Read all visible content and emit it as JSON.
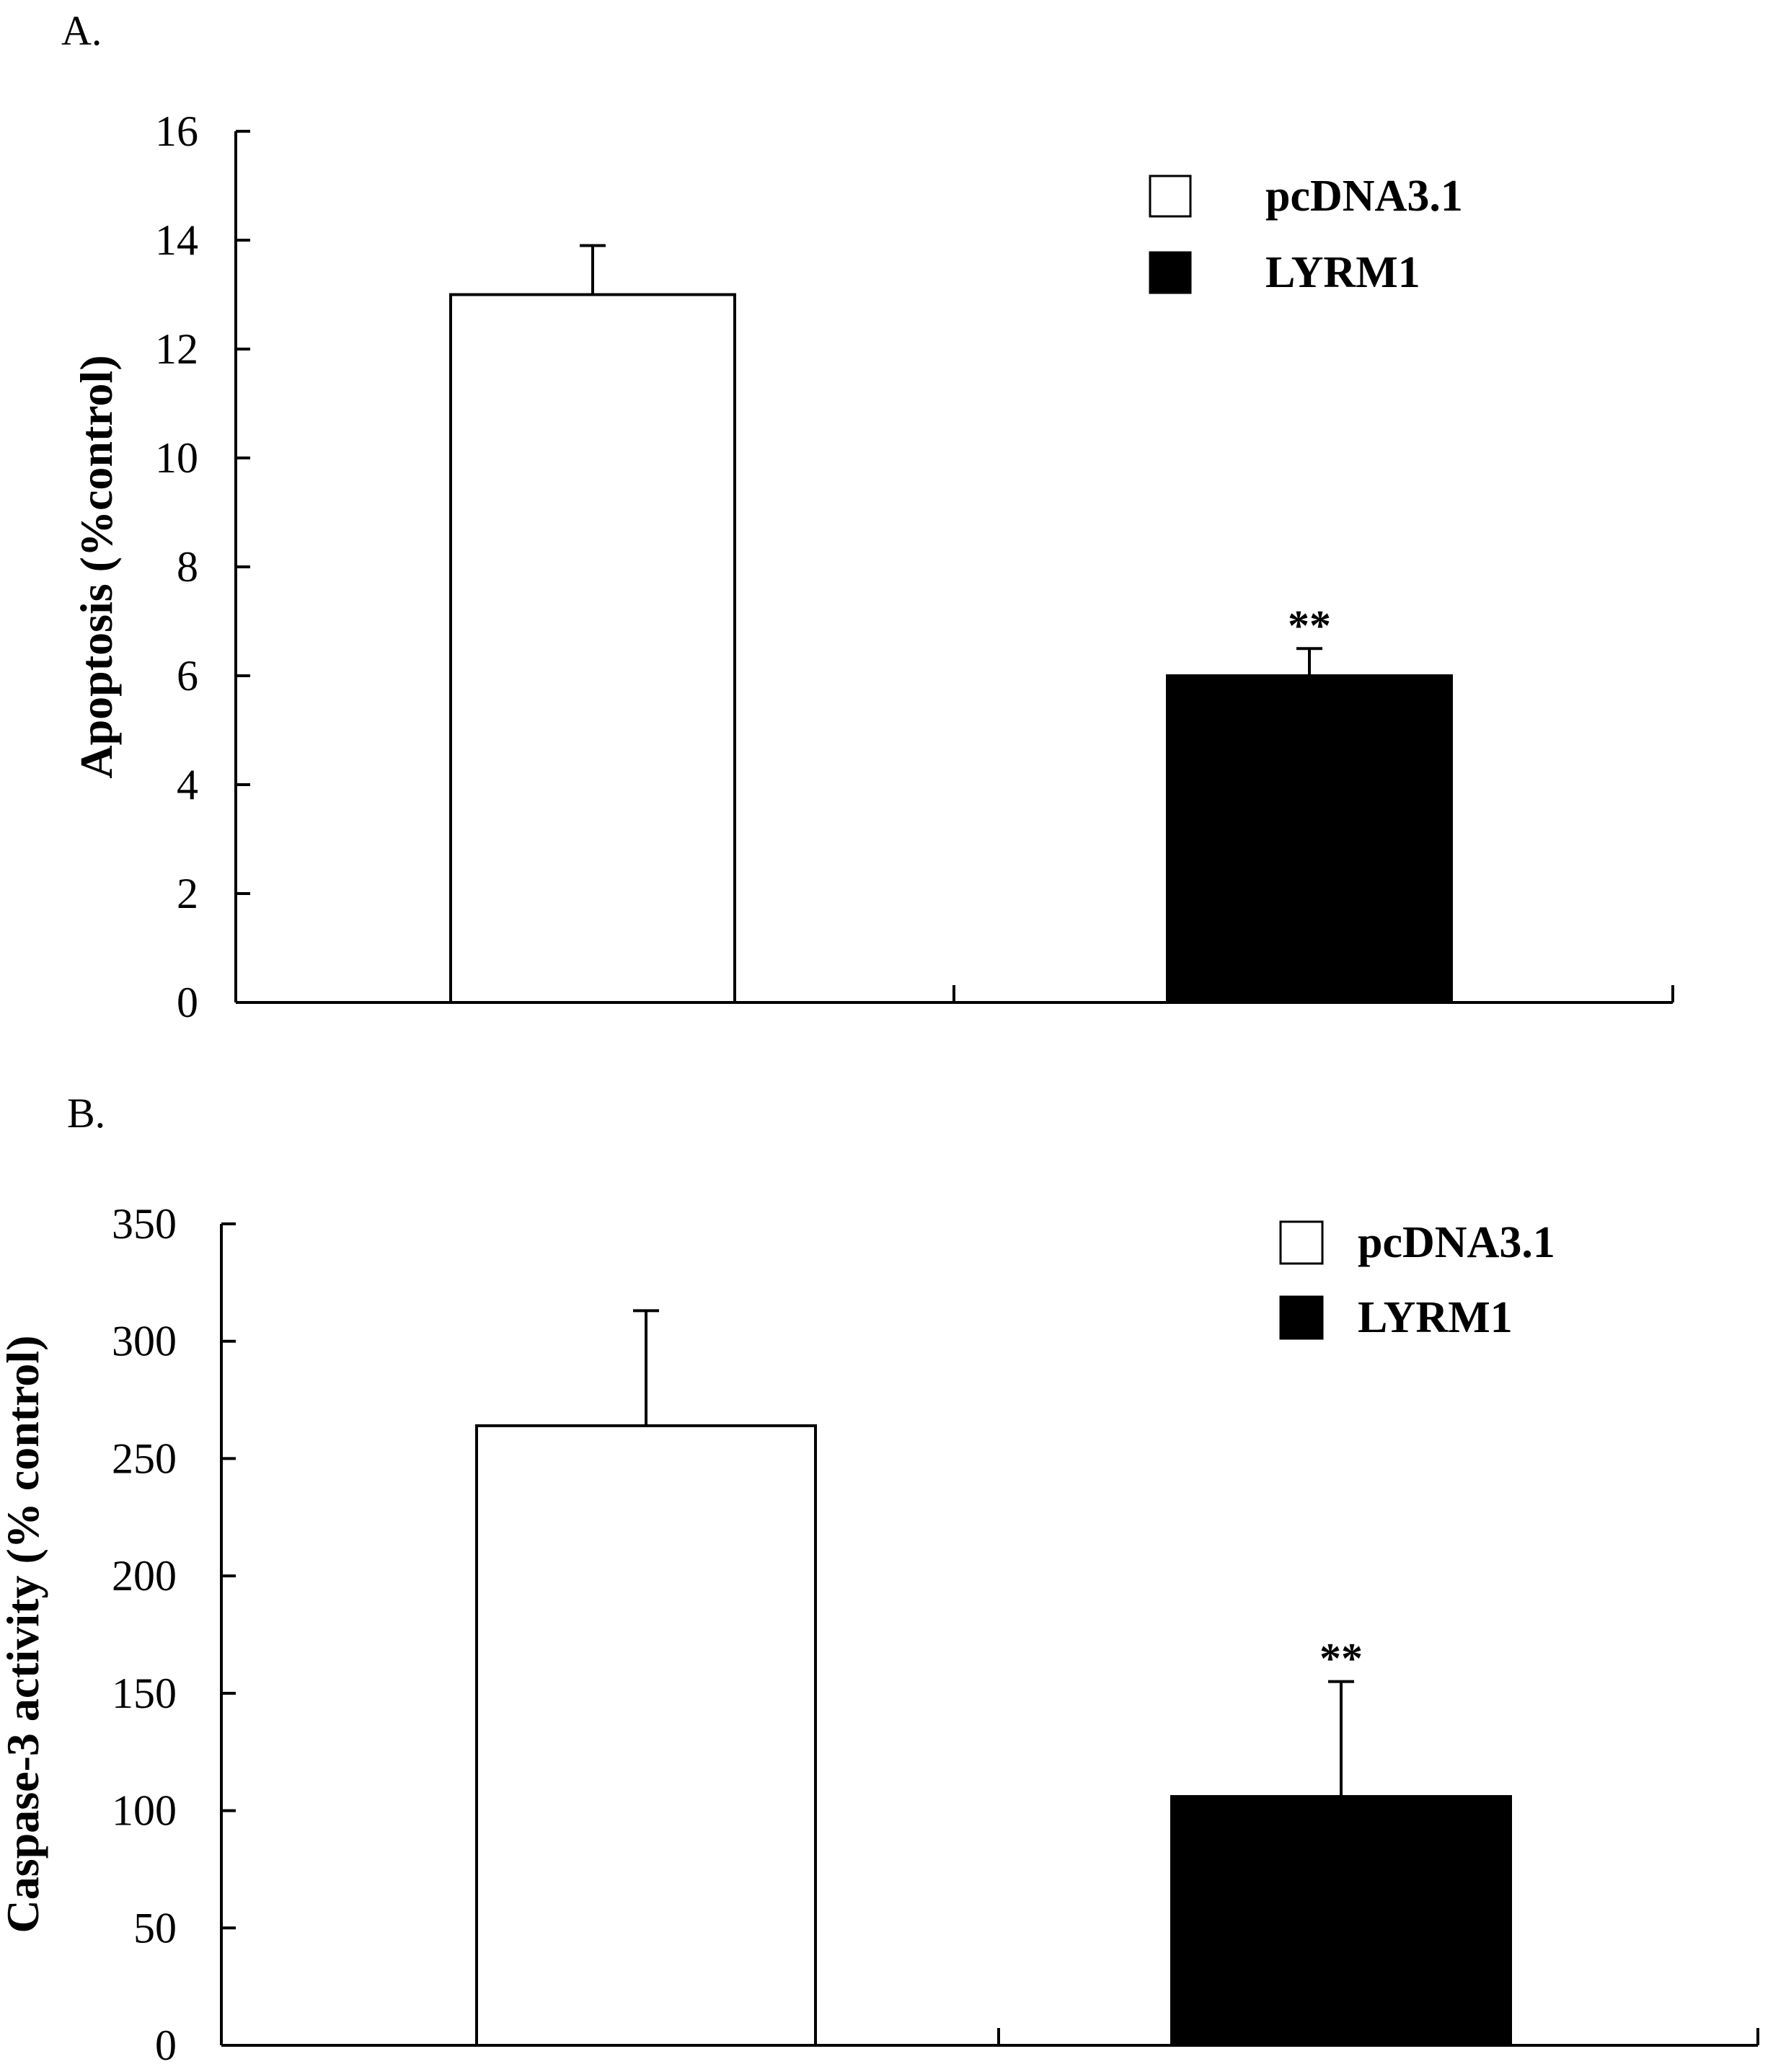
{
  "chart_data": [
    {
      "panel_label": "A.",
      "type": "bar",
      "categories": [
        "pcDNA3.1",
        "LYRM1"
      ],
      "values": [
        13,
        6
      ],
      "errors": [
        0.9,
        0.5
      ],
      "fills": [
        "#ffffff",
        "#000000"
      ],
      "significance": [
        "",
        "**"
      ],
      "ylabel": "Apoptosis (%control)",
      "xlabel": "",
      "ylim": [
        0,
        16
      ],
      "yticks": [
        0,
        2,
        4,
        6,
        8,
        10,
        12,
        14,
        16
      ],
      "legend": [
        {
          "label": "pcDNA3.1",
          "fill": "#ffffff"
        },
        {
          "label": "LYRM1",
          "fill": "#000000"
        }
      ],
      "grid": false,
      "legend_position": "top-right"
    },
    {
      "panel_label": "B.",
      "type": "bar",
      "categories": [
        "pcDNA3.1",
        "LYRM1"
      ],
      "values": [
        264,
        106
      ],
      "errors": [
        49,
        49
      ],
      "fills": [
        "#ffffff",
        "#000000"
      ],
      "significance": [
        "",
        "**"
      ],
      "ylabel": "Caspase-3 activity (% control)",
      "xlabel": "",
      "ylim": [
        0,
        350
      ],
      "yticks": [
        0,
        50,
        100,
        150,
        200,
        250,
        300,
        350
      ],
      "legend": [
        {
          "label": "pcDNA3.1",
          "fill": "#ffffff"
        },
        {
          "label": "LYRM1",
          "fill": "#000000"
        }
      ],
      "grid": false,
      "legend_position": "top-right"
    }
  ]
}
